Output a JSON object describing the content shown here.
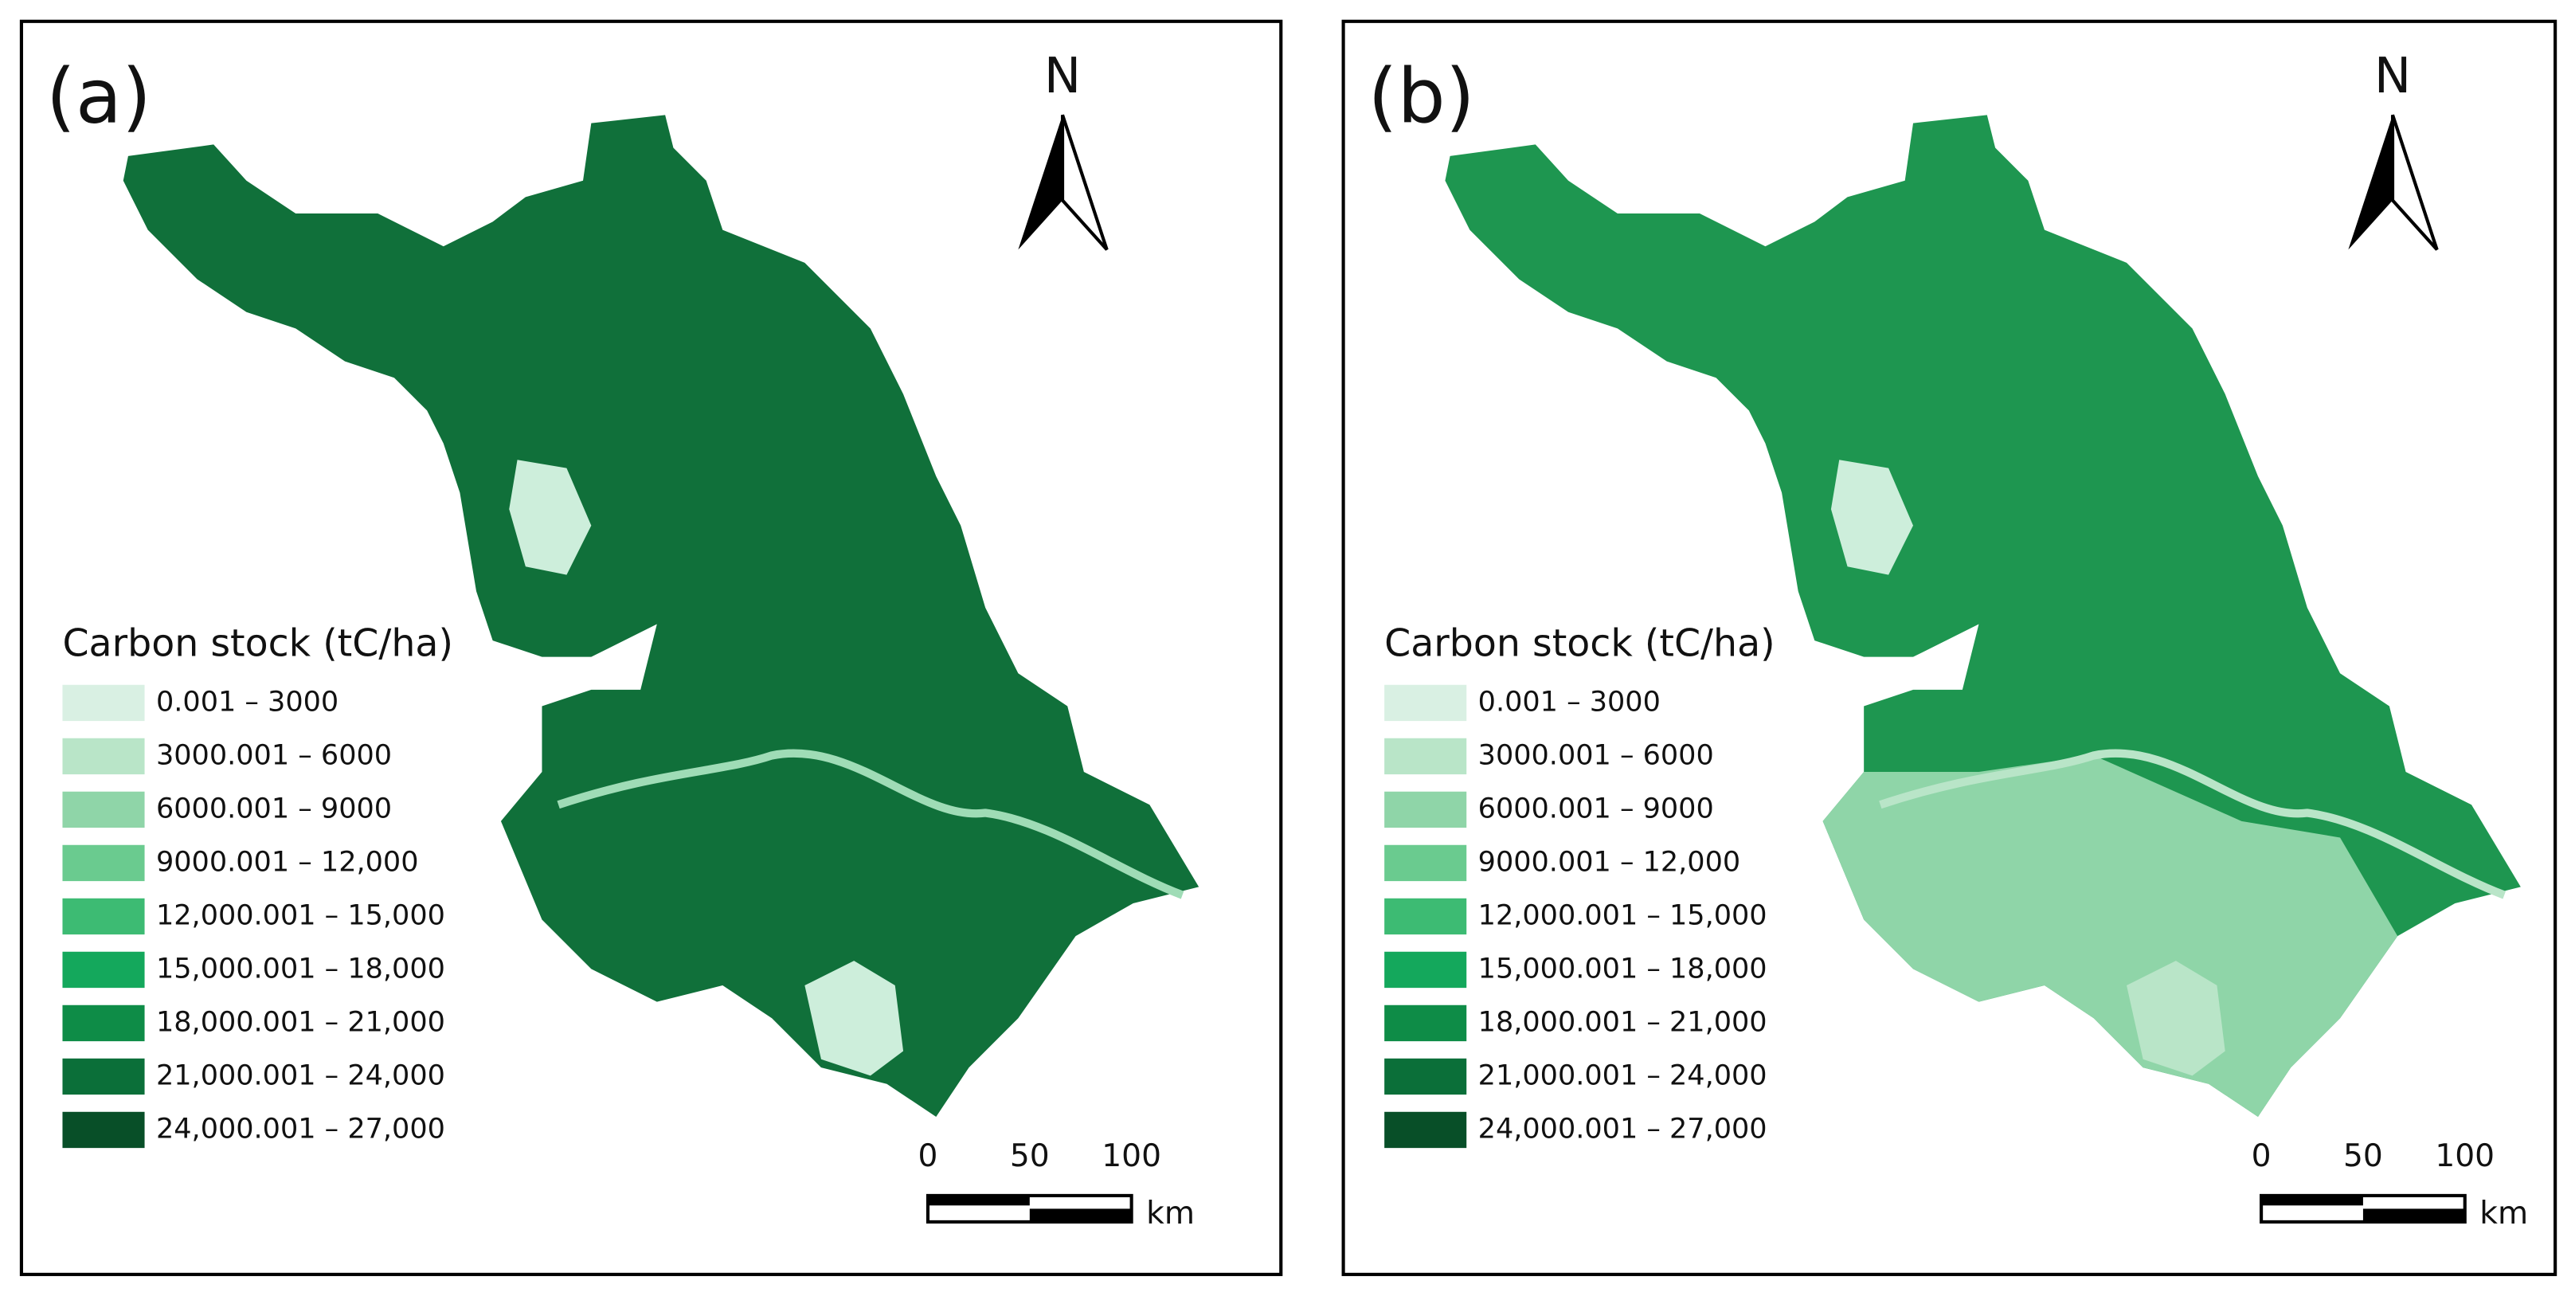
{
  "panels": [
    {
      "label": "(a)",
      "north": "N",
      "legend": {
        "title": "Carbon stock (tC/ha)",
        "items": [
          {
            "label": "0.001 – 3000",
            "color": "#d9f0e3"
          },
          {
            "label": "3000.001 – 6000",
            "color": "#b9e5c8"
          },
          {
            "label": "6000.001 – 9000",
            "color": "#8fd5a8"
          },
          {
            "label": "9000.001 – 12,000",
            "color": "#6acb8f"
          },
          {
            "label": "12,000.001 – 15,000",
            "color": "#3dbb73"
          },
          {
            "label": "15,000.001 – 18,000",
            "color": "#14a85c"
          },
          {
            "label": "18,000.001 – 21,000",
            "color": "#0e8c47"
          },
          {
            "label": "21,000.001 – 24,000",
            "color": "#0b6f39"
          },
          {
            "label": "24,000.001 – 27,000",
            "color": "#084f28"
          }
        ]
      },
      "scale_bar": {
        "ticks": [
          "0",
          "50",
          "100"
        ],
        "unit": "km"
      }
    },
    {
      "label": "(b)",
      "north": "N",
      "legend": {
        "title": "Carbon stock (tC/ha)",
        "items": [
          {
            "label": "0.001 – 3000",
            "color": "#d9f0e3"
          },
          {
            "label": "3000.001 – 6000",
            "color": "#b9e5c8"
          },
          {
            "label": "6000.001 – 9000",
            "color": "#8fd5a8"
          },
          {
            "label": "9000.001 – 12,000",
            "color": "#6acb8f"
          },
          {
            "label": "12,000.001 – 15,000",
            "color": "#3dbb73"
          },
          {
            "label": "15,000.001 – 18,000",
            "color": "#14a85c"
          },
          {
            "label": "18,000.001 – 21,000",
            "color": "#0e8c47"
          },
          {
            "label": "21,000.001 – 24,000",
            "color": "#0b6f39"
          },
          {
            "label": "24,000.001 – 27,000",
            "color": "#084f28"
          }
        ]
      },
      "scale_bar": {
        "ticks": [
          "0",
          "50",
          "100"
        ],
        "unit": "km"
      }
    }
  ]
}
